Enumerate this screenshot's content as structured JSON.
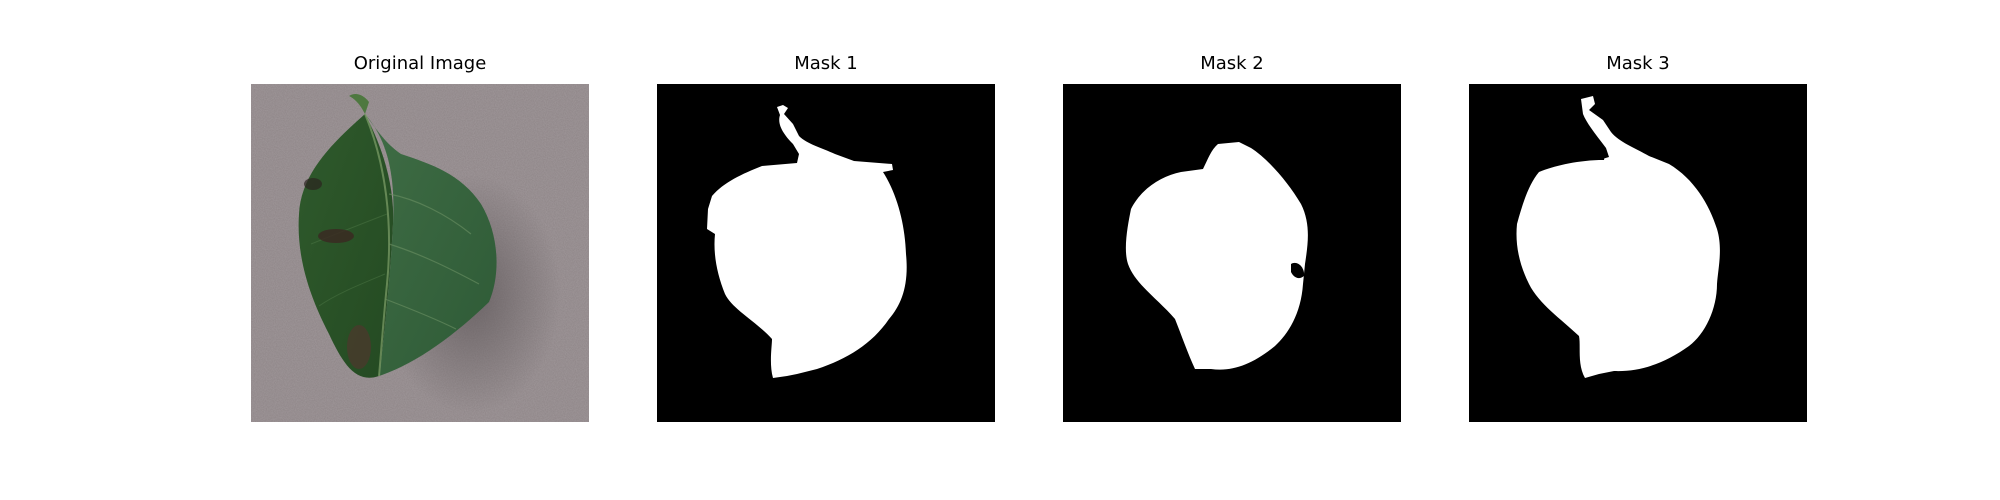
{
  "figure": {
    "panels": [
      {
        "title": "Original Image",
        "kind": "photo",
        "subject": "leaf-photo"
      },
      {
        "title": "Mask 1",
        "kind": "mask",
        "colors": {
          "background": "#000000",
          "foreground": "#ffffff"
        }
      },
      {
        "title": "Mask 2",
        "kind": "mask",
        "colors": {
          "background": "#000000",
          "foreground": "#ffffff"
        }
      },
      {
        "title": "Mask 3",
        "kind": "mask",
        "colors": {
          "background": "#000000",
          "foreground": "#ffffff"
        }
      }
    ]
  }
}
